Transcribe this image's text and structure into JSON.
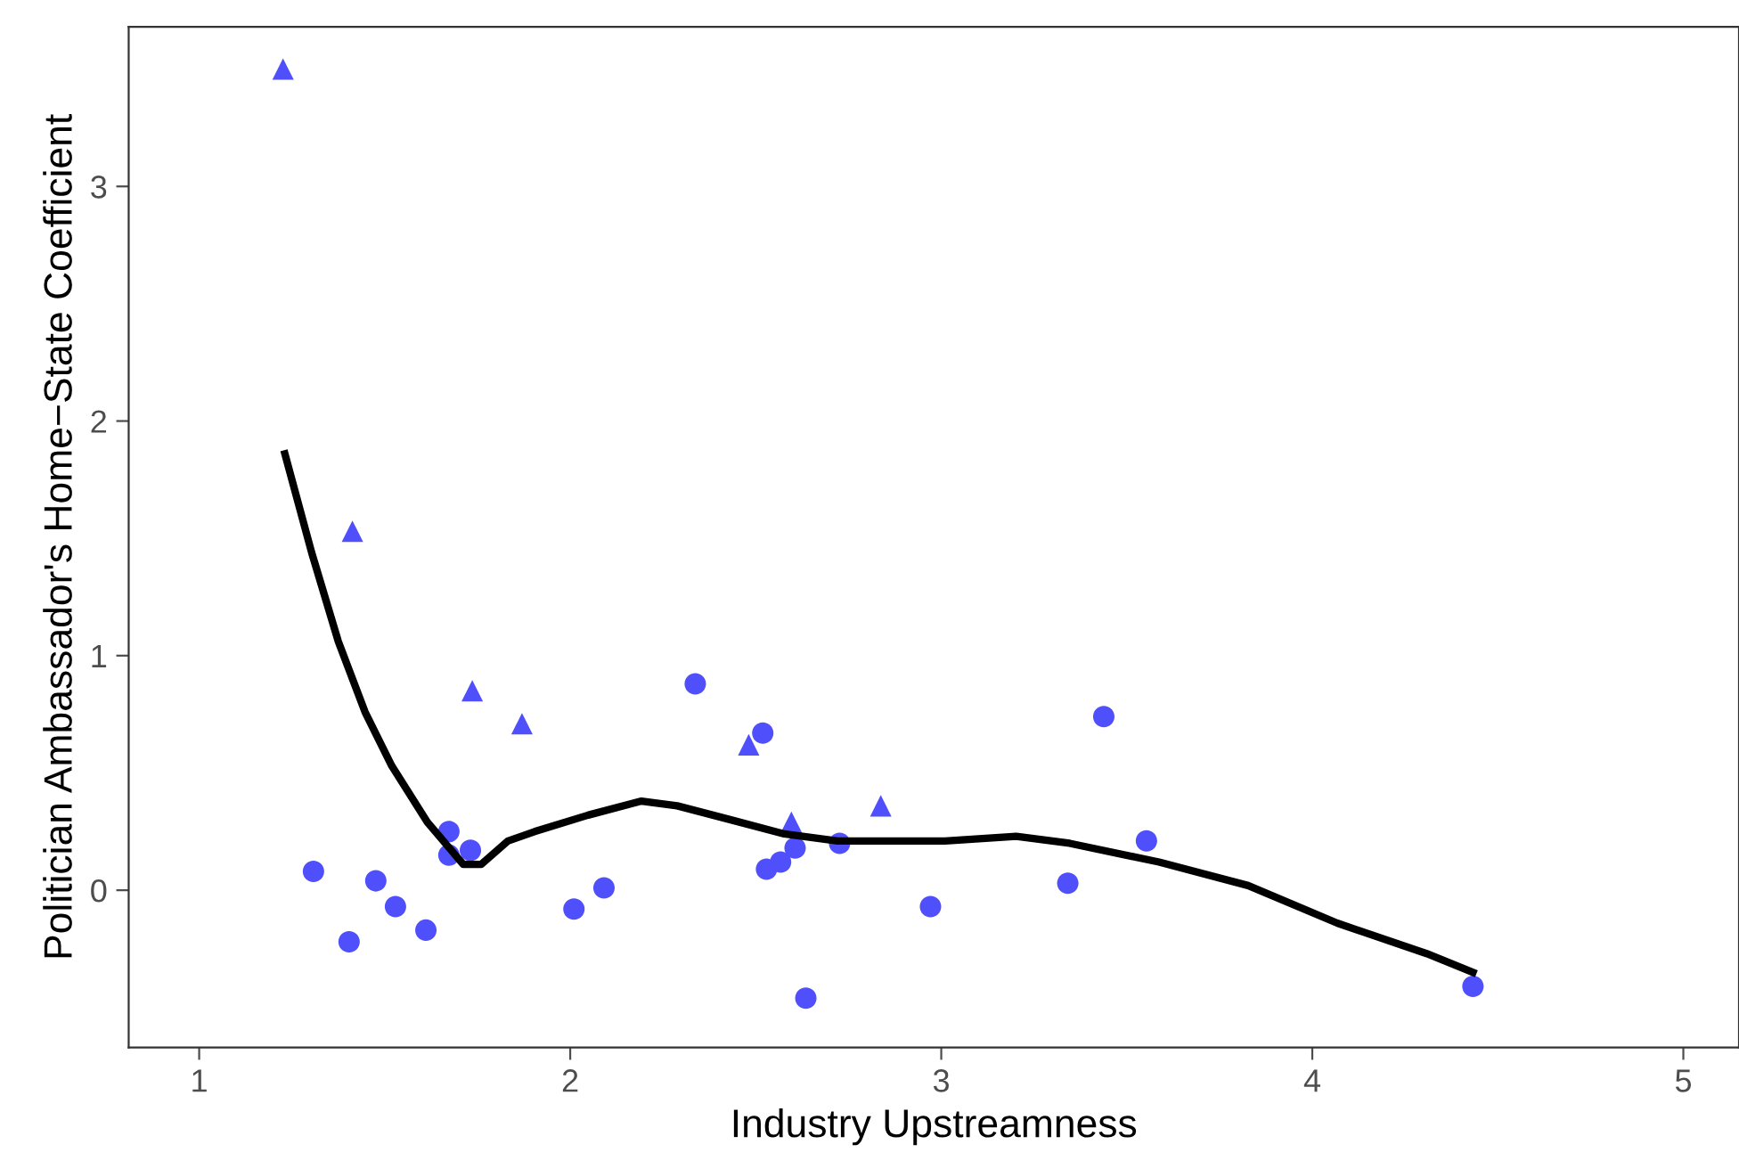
{
  "chart_data": {
    "type": "scatter",
    "xlabel": "Industry Upstreamness",
    "ylabel": "Politician Ambassador's Home−State Coefficient",
    "xlim": [
      0.81,
      5.15
    ],
    "ylim": [
      -0.67,
      3.68
    ],
    "xticks": [
      1,
      2,
      3,
      4,
      5
    ],
    "yticks": [
      0,
      1,
      2,
      3
    ],
    "grid": false,
    "legend": false,
    "series": [
      {
        "marker": "triangle",
        "color": "#4f4ffb",
        "x": [
          1.226,
          1.413,
          1.736,
          1.87,
          2.481,
          2.596,
          2.837
        ],
        "values": [
          3.5,
          1.53,
          0.85,
          0.71,
          0.62,
          0.29,
          0.36
        ]
      },
      {
        "marker": "circle",
        "color": "#4f4ffb",
        "x": [
          1.308,
          1.404,
          1.476,
          1.529,
          1.611,
          1.673,
          1.673,
          1.731,
          2.01,
          2.091,
          2.337,
          2.519,
          2.529,
          2.567,
          2.606,
          2.635,
          2.726,
          2.971,
          3.341,
          3.438,
          3.553,
          4.433
        ],
        "values": [
          0.08,
          -0.22,
          0.04,
          -0.07,
          -0.17,
          0.25,
          0.15,
          0.17,
          -0.08,
          0.01,
          0.88,
          0.67,
          0.09,
          0.12,
          0.18,
          -0.46,
          0.2,
          -0.07,
          0.03,
          0.74,
          0.21,
          -0.41
        ]
      },
      {
        "type": "line",
        "marker": "none",
        "line_style": "solid",
        "color": "#000000",
        "x": [
          1.231,
          1.303,
          1.375,
          1.447,
          1.519,
          1.615,
          1.712,
          1.76,
          1.832,
          1.904,
          2.048,
          2.192,
          2.288,
          2.433,
          2.577,
          2.721,
          3.01,
          3.202,
          3.346,
          3.587,
          3.827,
          4.067,
          4.308,
          4.433
        ],
        "values": [
          1.86,
          1.44,
          1.06,
          0.76,
          0.53,
          0.29,
          0.11,
          0.11,
          0.21,
          0.25,
          0.32,
          0.38,
          0.36,
          0.3,
          0.24,
          0.21,
          0.21,
          0.23,
          0.2,
          0.12,
          0.02,
          -0.14,
          -0.27,
          -0.35
        ]
      }
    ]
  }
}
